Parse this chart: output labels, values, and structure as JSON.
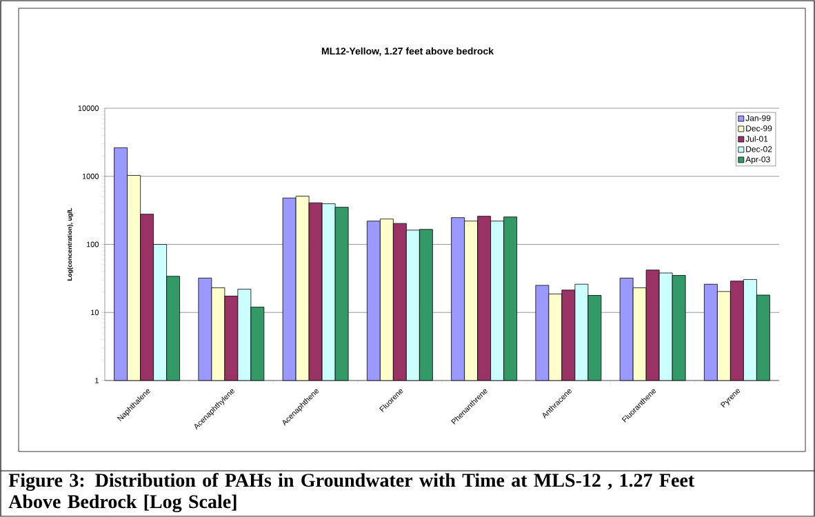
{
  "chart_data": {
    "type": "bar",
    "title": "ML12-Yellow, 1.27 feet above bedrock",
    "ylabel": "Log(concentration), ug/L",
    "annotations": [
      "Figure 3: Distribution of PAHs in Groundwater with Time at MLS-12 , 1.27 Feet Above Bedrock [Log Scale]"
    ],
    "categories": [
      "Naphthalene",
      "Acenaphthylene",
      "Acenaphthene",
      "Fluorene",
      "Phenanthrene",
      "Anthracene",
      "Fluoranthene",
      "Pyrene"
    ],
    "series": [
      {
        "name": "Jan-99",
        "color": "#9999ff",
        "values": [
          2630,
          32,
          480,
          220,
          247,
          25,
          32,
          26
        ]
      },
      {
        "name": "Dec-99",
        "color": "#ffffcc",
        "values": [
          1030,
          23,
          511,
          236,
          220,
          18.7,
          23,
          20.3
        ]
      },
      {
        "name": "Jul-01",
        "color": "#993366",
        "values": [
          278,
          17.4,
          408,
          203,
          259,
          21.3,
          42,
          28.9
        ]
      },
      {
        "name": "Dec-02",
        "color": "#ccffff",
        "values": [
          100,
          22,
          395,
          162,
          220,
          26,
          38,
          30.5
        ]
      },
      {
        "name": "Apr-03",
        "color": "#339966",
        "values": [
          34,
          12,
          351,
          166,
          253,
          17.8,
          35,
          18
        ]
      }
    ],
    "ylim": [
      1,
      10000
    ],
    "yticks": [
      1,
      10,
      100,
      1000,
      10000
    ],
    "log": true,
    "grid": "y",
    "legend": "top right"
  }
}
